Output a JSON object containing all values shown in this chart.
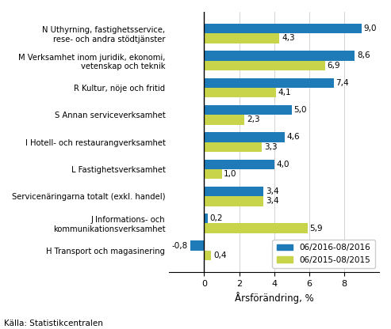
{
  "categories": [
    "N Uthyrning, fastighetsservice,\nrese- och andra stödtjänster",
    "M Verksamhet inom juridik, ekonomi,\nvetenskap och teknik",
    "R Kultur, nöje och fritid",
    "S Annan serviceverksamhet",
    "I Hotell- och restaurangverksamhet",
    "L Fastighetsverksamhet",
    "Servicenäringarna totalt (exkl. handel)",
    "J Informations- och\nkommunikationsverksamhet",
    "H Transport och magasinering"
  ],
  "values_2016": [
    9.0,
    8.6,
    7.4,
    5.0,
    4.6,
    4.0,
    3.4,
    0.2,
    -0.8
  ],
  "values_2015": [
    4.3,
    6.9,
    4.1,
    2.3,
    3.3,
    1.0,
    3.4,
    5.9,
    0.4
  ],
  "labels_2016": [
    "9,0",
    "8,6",
    "7,4",
    "5,0",
    "4,6",
    "4,0",
    "3,4",
    "0,2",
    "-0,8"
  ],
  "labels_2015": [
    "4,3",
    "6,9",
    "4,1",
    "2,3",
    "3,3",
    "1,0",
    "3,4",
    "5,9",
    "0,4"
  ],
  "color_2016": "#1F7AB8",
  "color_2015": "#C8D44A",
  "xlabel": "Årsförändring, %",
  "legend_2016": "06/2016-08/2016",
  "legend_2015": "06/2015-08/2015",
  "source": "Källa: Statistikcentralen",
  "xlim": [
    -2,
    10
  ],
  "xticks": [
    0,
    2,
    4,
    6,
    8
  ],
  "bar_height": 0.36,
  "label_fontsize": 7.2,
  "value_fontsize": 7.5,
  "xlabel_fontsize": 8.5,
  "source_fontsize": 7.5,
  "legend_fontsize": 7.5
}
